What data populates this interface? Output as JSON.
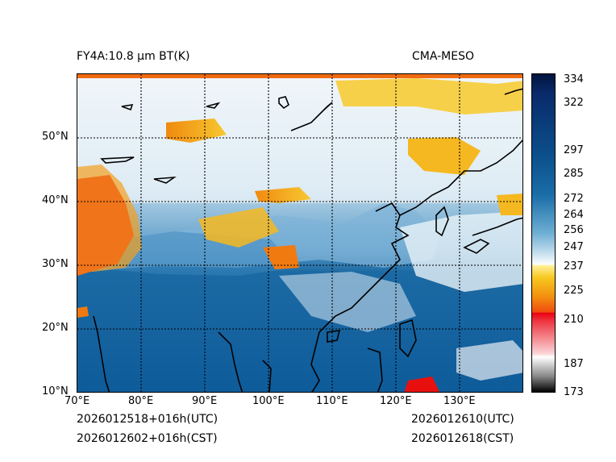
{
  "header": {
    "left_title": "FY4A:10.8 μm BT(K)",
    "right_title": "CMA-MESO"
  },
  "map": {
    "lon_labels": [
      "70°E",
      "80°E",
      "90°E",
      "100°E",
      "110°E",
      "120°E",
      "130°E"
    ],
    "lat_labels": [
      "50°N",
      "40°N",
      "30°N",
      "20°N",
      "10°N"
    ]
  },
  "colorbar": {
    "labels": [
      "334",
      "322",
      "297",
      "285",
      "272",
      "264",
      "256",
      "247",
      "237",
      "225",
      "210",
      "187",
      "173"
    ],
    "colors": {
      "dark_navy": "#001a4d",
      "blue": "#0a5c9a",
      "light_blue": "#8cc2e0",
      "white": "#ffffff",
      "yellow": "#f5c518",
      "orange": "#f07a10",
      "red": "#e8000b",
      "pink": "#f4a0a8",
      "black": "#000000"
    }
  },
  "footer": {
    "init_utc": "2026012518+016h(UTC)",
    "init_cst": "2026012602+016h(CST)",
    "valid_utc": "2026012610(UTC)",
    "valid_cst": "2026012618(CST)"
  }
}
